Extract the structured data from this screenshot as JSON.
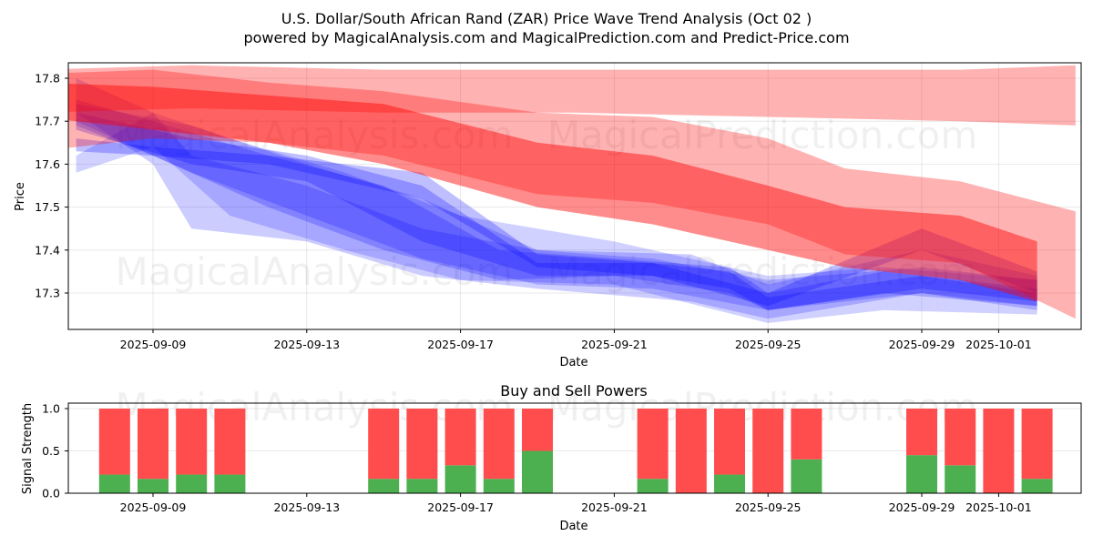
{
  "chart_data": [
    {
      "type": "area",
      "title": "U.S. Dollar/South African Rand (ZAR) Price Wave Trend Analysis (Oct 02 )",
      "subtitle": "powered by MagicalAnalysis.com and MagicalPrediction.com and Predict-Price.com",
      "xlabel": "Date",
      "ylabel": "Price",
      "ylim": [
        17.215,
        17.835
      ],
      "xlim": [
        "2025-09-06",
        "2025-10-03"
      ],
      "yticks": [
        "17.3",
        "17.4",
        "17.5",
        "17.6",
        "17.7",
        "17.8"
      ],
      "xticks": [
        "2025-09-09",
        "2025-09-13",
        "2025-09-17",
        "2025-09-21",
        "2025-09-25",
        "2025-09-29",
        "2025-10-01"
      ],
      "grid": true,
      "watermarks": [
        "MagicalAnalysis.com",
        "MagicalPrediction.com",
        "MagicalAnalysis.com",
        "MagicalPrediction.com"
      ],
      "colors": {
        "sell": "#ff0000",
        "buy": "#0000ff"
      },
      "sell_bands": [
        {
          "name": "sell-band-upper",
          "opacity": 0.3,
          "x": [
            "2025-09-06",
            "2025-09-10",
            "2025-09-15",
            "2025-09-20",
            "2025-09-25",
            "2025-09-30",
            "2025-10-03"
          ],
          "upper": [
            17.82,
            17.83,
            17.82,
            17.82,
            17.82,
            17.82,
            17.83
          ],
          "lower": [
            17.72,
            17.73,
            17.72,
            17.72,
            17.71,
            17.7,
            17.69
          ]
        },
        {
          "name": "sell-band-middle",
          "opacity": 0.3,
          "x": [
            "2025-09-06",
            "2025-09-09",
            "2025-09-12",
            "2025-09-15",
            "2025-09-19",
            "2025-09-22",
            "2025-09-25",
            "2025-09-27",
            "2025-09-30",
            "2025-10-03"
          ],
          "upper": [
            17.81,
            17.82,
            17.79,
            17.77,
            17.72,
            17.71,
            17.66,
            17.59,
            17.56,
            17.49
          ],
          "lower": [
            17.63,
            17.66,
            17.65,
            17.62,
            17.53,
            17.51,
            17.46,
            17.39,
            17.37,
            17.24
          ]
        },
        {
          "name": "sell-band-core",
          "opacity": 0.45,
          "x": [
            "2025-09-06",
            "2025-09-09",
            "2025-09-12",
            "2025-09-15",
            "2025-09-19",
            "2025-09-22",
            "2025-09-25",
            "2025-09-27",
            "2025-09-30",
            "2025-10-02"
          ],
          "upper": [
            17.79,
            17.78,
            17.76,
            17.74,
            17.65,
            17.62,
            17.55,
            17.5,
            17.48,
            17.42
          ],
          "lower": [
            17.71,
            17.68,
            17.65,
            17.6,
            17.5,
            17.46,
            17.4,
            17.36,
            17.33,
            17.28
          ]
        }
      ],
      "buy_bands": [
        {
          "name": "buy-band-1",
          "opacity": 0.18,
          "x": [
            "2025-09-07",
            "2025-09-09",
            "2025-09-11",
            "2025-09-14",
            "2025-09-17",
            "2025-09-21",
            "2025-09-25",
            "2025-09-28",
            "2025-10-02"
          ],
          "upper": [
            17.62,
            17.72,
            17.66,
            17.58,
            17.48,
            17.42,
            17.34,
            17.36,
            17.33
          ],
          "lower": [
            17.58,
            17.64,
            17.48,
            17.4,
            17.33,
            17.32,
            17.23,
            17.26,
            17.25
          ]
        },
        {
          "name": "buy-band-2",
          "opacity": 0.2,
          "x": [
            "2025-09-07",
            "2025-09-09",
            "2025-09-10",
            "2025-09-13",
            "2025-09-16",
            "2025-09-19",
            "2025-09-23",
            "2025-09-25",
            "2025-09-29",
            "2025-10-02"
          ],
          "upper": [
            17.8,
            17.72,
            17.62,
            17.55,
            17.45,
            17.4,
            17.39,
            17.32,
            17.4,
            17.34
          ],
          "lower": [
            17.72,
            17.6,
            17.45,
            17.42,
            17.34,
            17.31,
            17.28,
            17.24,
            17.3,
            17.26
          ]
        },
        {
          "name": "buy-band-3",
          "opacity": 0.2,
          "x": [
            "2025-09-07",
            "2025-09-10",
            "2025-09-13",
            "2025-09-16",
            "2025-09-19",
            "2025-09-22",
            "2025-09-25",
            "2025-09-29",
            "2025-10-02"
          ],
          "upper": [
            17.74,
            17.69,
            17.6,
            17.52,
            17.4,
            17.38,
            17.33,
            17.36,
            17.33
          ],
          "lower": [
            17.7,
            17.58,
            17.48,
            17.38,
            17.32,
            17.31,
            17.26,
            17.3,
            17.27
          ]
        },
        {
          "name": "buy-band-4",
          "opacity": 0.22,
          "x": [
            "2025-09-07",
            "2025-09-09",
            "2025-09-12",
            "2025-09-15",
            "2025-09-18",
            "2025-09-21",
            "2025-09-24",
            "2025-09-25",
            "2025-09-28",
            "2025-10-02"
          ],
          "upper": [
            17.75,
            17.7,
            17.62,
            17.55,
            17.4,
            17.38,
            17.36,
            17.3,
            17.35,
            17.31
          ],
          "lower": [
            17.69,
            17.62,
            17.5,
            17.4,
            17.33,
            17.34,
            17.3,
            17.26,
            17.3,
            17.27
          ]
        },
        {
          "name": "buy-band-5",
          "opacity": 0.25,
          "x": [
            "2025-09-07",
            "2025-09-10",
            "2025-09-13",
            "2025-09-16",
            "2025-09-19",
            "2025-09-22",
            "2025-09-24",
            "2025-09-25",
            "2025-09-29",
            "2025-10-02"
          ],
          "upper": [
            17.72,
            17.66,
            17.62,
            17.55,
            17.37,
            17.37,
            17.35,
            17.29,
            17.34,
            17.3
          ],
          "lower": [
            17.68,
            17.6,
            17.56,
            17.42,
            17.34,
            17.34,
            17.31,
            17.26,
            17.31,
            17.28
          ]
        },
        {
          "name": "buy-band-6",
          "opacity": 0.25,
          "x": [
            "2025-09-07",
            "2025-09-09",
            "2025-09-12",
            "2025-09-16",
            "2025-09-19",
            "2025-09-22",
            "2025-09-25",
            "2025-09-29",
            "2025-10-02"
          ],
          "upper": [
            17.66,
            17.64,
            17.62,
            17.58,
            17.39,
            17.37,
            17.3,
            17.45,
            17.35
          ],
          "lower": [
            17.63,
            17.62,
            17.6,
            17.52,
            17.36,
            17.34,
            17.27,
            17.4,
            17.3
          ]
        }
      ]
    },
    {
      "type": "bar",
      "title": "Buy and Sell Powers",
      "xlabel": "Date",
      "ylabel": "Signal Strength",
      "ylim": [
        0,
        1.05
      ],
      "yticks": [
        "0.0",
        "0.5",
        "1.0"
      ],
      "xticks": [
        "2025-09-09",
        "2025-09-13",
        "2025-09-17",
        "2025-09-21",
        "2025-09-25",
        "2025-09-29",
        "2025-10-01"
      ],
      "grid": true,
      "colors": {
        "buy": "#4caf50",
        "sell": "#ff4c4c"
      },
      "categories": [
        "2025-09-08",
        "2025-09-09",
        "2025-09-10",
        "2025-09-11",
        "2025-09-15",
        "2025-09-16",
        "2025-09-17",
        "2025-09-18",
        "2025-09-19",
        "2025-09-22",
        "2025-09-23",
        "2025-09-24",
        "2025-09-25",
        "2025-09-26",
        "2025-09-29",
        "2025-09-30",
        "2025-10-01",
        "2025-10-02"
      ],
      "series": [
        {
          "name": "Buy",
          "values": [
            0.22,
            0.17,
            0.22,
            0.22,
            0.17,
            0.17,
            0.33,
            0.17,
            0.5,
            0.17,
            0.0,
            0.22,
            0.0,
            0.4,
            0.45,
            0.33,
            0.0,
            0.17
          ]
        },
        {
          "name": "Sell",
          "values": [
            0.78,
            0.83,
            0.78,
            0.78,
            0.83,
            0.83,
            0.67,
            0.83,
            0.5,
            0.83,
            1.0,
            0.78,
            1.0,
            0.6,
            0.55,
            0.67,
            1.0,
            0.83
          ]
        }
      ]
    }
  ]
}
